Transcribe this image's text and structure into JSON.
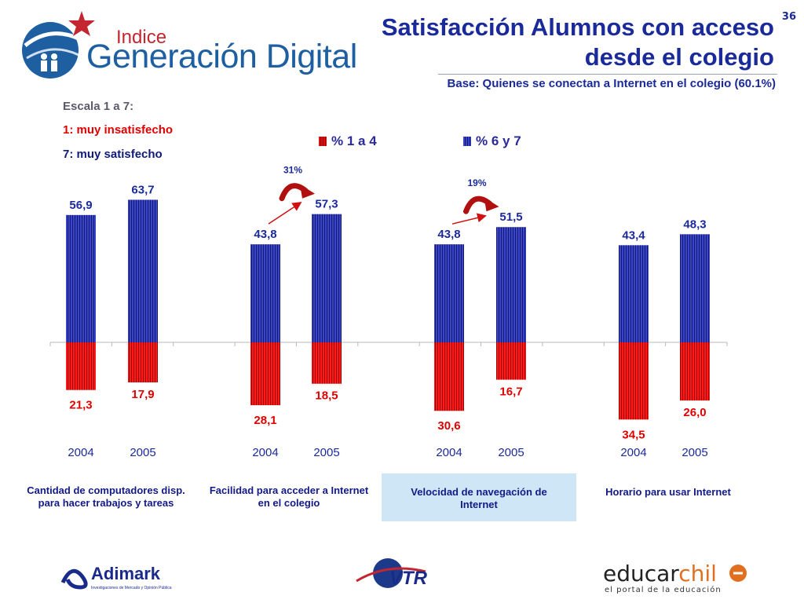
{
  "header": {
    "title": "Satisfacción Alumnos con acceso desde el colegio",
    "slide_number": "36",
    "subtitle": "Base: Quienes se conectan a Internet en el colegio (60.1%)"
  },
  "brand": {
    "small": "Indice",
    "big": "Generación Digital"
  },
  "scale_note": {
    "title": "Escala 1 a 7:",
    "low": "1: muy insatisfecho",
    "high": "7: muy satisfecho"
  },
  "chart_data": {
    "type": "bar",
    "title": "",
    "legend_position": "top",
    "series": [
      {
        "name": "% 1 a 4",
        "color": "#e01010",
        "direction": "down",
        "values": [
          21.3,
          17.9,
          28.1,
          18.5,
          30.6,
          16.7,
          34.5,
          26.0
        ],
        "labels": [
          "21,3",
          "17,9",
          "28,1",
          "18,5",
          "30,6",
          "16,7",
          "34,5",
          "26,0"
        ]
      },
      {
        "name": "% 6 y 7",
        "color": "#2a35b0",
        "direction": "up",
        "values": [
          56.9,
          63.7,
          43.8,
          57.3,
          43.8,
          51.5,
          43.4,
          48.3
        ],
        "labels": [
          "56,9",
          "63,7",
          "43,8",
          "57,3",
          "43,8",
          "51,5",
          "43,4",
          "48,3"
        ]
      }
    ],
    "years": [
      "2004",
      "2005",
      "2004",
      "2005",
      "2004",
      "2005",
      "2004",
      "2005"
    ],
    "groups": [
      "Cantidad de computadores disp. para hacer trabajos y tareas",
      "Facilidad para acceder a Internet en el colegio",
      "Velocidad de navegación de Internet",
      "Horario para usar Internet"
    ],
    "highlighted_group": 2,
    "growth_annotations": [
      {
        "group": 1,
        "label": "31%"
      },
      {
        "group": 2,
        "label": "19%"
      }
    ]
  },
  "footer": {
    "logos": [
      "Adimark",
      "VTR",
      "educarchile"
    ],
    "adimark_tagline": "Investigaciones de Mercado y Opinión Pública",
    "educar_tagline": "el portal de la educación",
    "educar_name_a": "educar",
    "educar_name_b": "chil"
  },
  "colors": {
    "title": "#1a2a9a",
    "red": "#e01010",
    "blue": "#2a35b0",
    "highlight": "#cfe6f7"
  }
}
